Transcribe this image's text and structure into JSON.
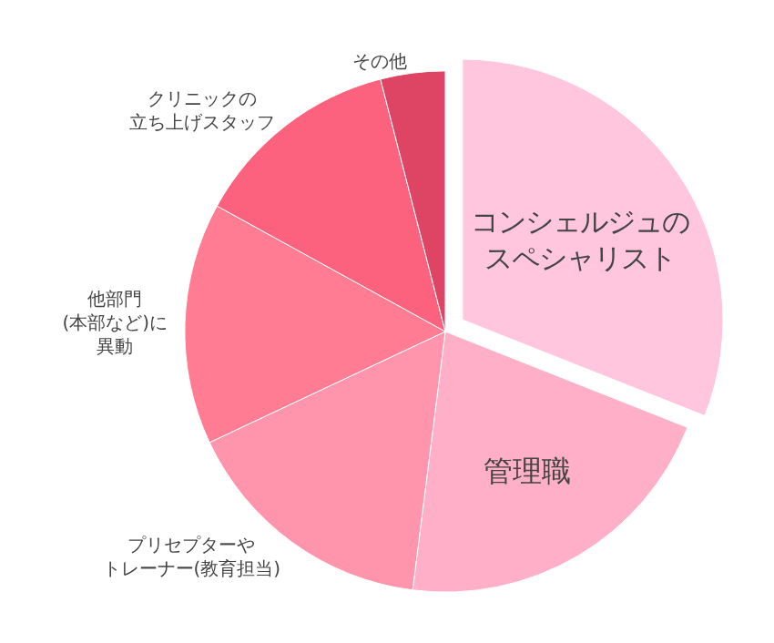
{
  "chart_data": {
    "type": "pie",
    "categories": [
      "コンシェルジュのスペシャリスト",
      "管理職",
      "プリセプターやトレーナー(教育担当)",
      "他部門(本部など)に異動",
      "クリニックの立ち上げスタッフ",
      "その他"
    ],
    "values": [
      31,
      21,
      16,
      15,
      13,
      4
    ],
    "colors": [
      "#ffc6dd",
      "#ffafc7",
      "#ff94ad",
      "#ff7c92",
      "#fc627d",
      "#de4565"
    ],
    "legend": false
  }
}
